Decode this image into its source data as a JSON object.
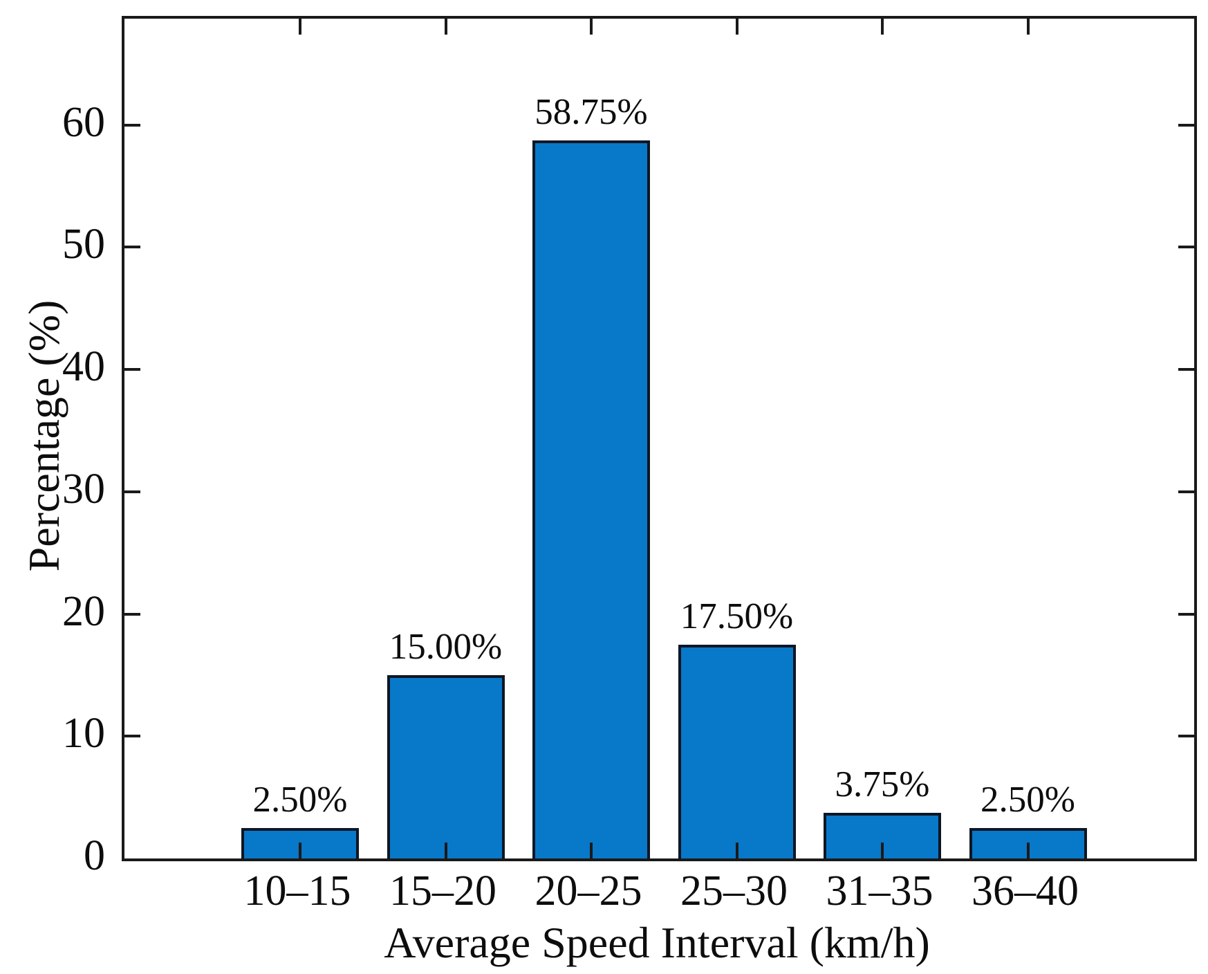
{
  "figure": {
    "background": "#ffffff"
  },
  "chart_data": {
    "type": "bar",
    "title": "",
    "xlabel": "Average Speed Interval (km/h)",
    "ylabel": "Percentage (%)",
    "categories": [
      "10–15",
      "15–20",
      "20–25",
      "25–30",
      "31–35",
      "36–40"
    ],
    "values": [
      2.5,
      15.0,
      58.75,
      17.5,
      3.75,
      2.5
    ],
    "value_labels": [
      "2.50%",
      "15.00%",
      "58.75%",
      "17.50%",
      "3.75%",
      "2.50%"
    ],
    "yticks": [
      0,
      10,
      20,
      30,
      40,
      50,
      60
    ],
    "ytick_labels": [
      "0",
      "10",
      "20",
      "30",
      "40",
      "50",
      "60"
    ],
    "ylim": [
      0,
      68.7
    ],
    "grid": false,
    "legend": false,
    "box": true,
    "tick_direction": "in",
    "bar_color": "#0878C8",
    "bar_edge_color": "#0E1624",
    "axis_color": "#1A1A1A"
  }
}
